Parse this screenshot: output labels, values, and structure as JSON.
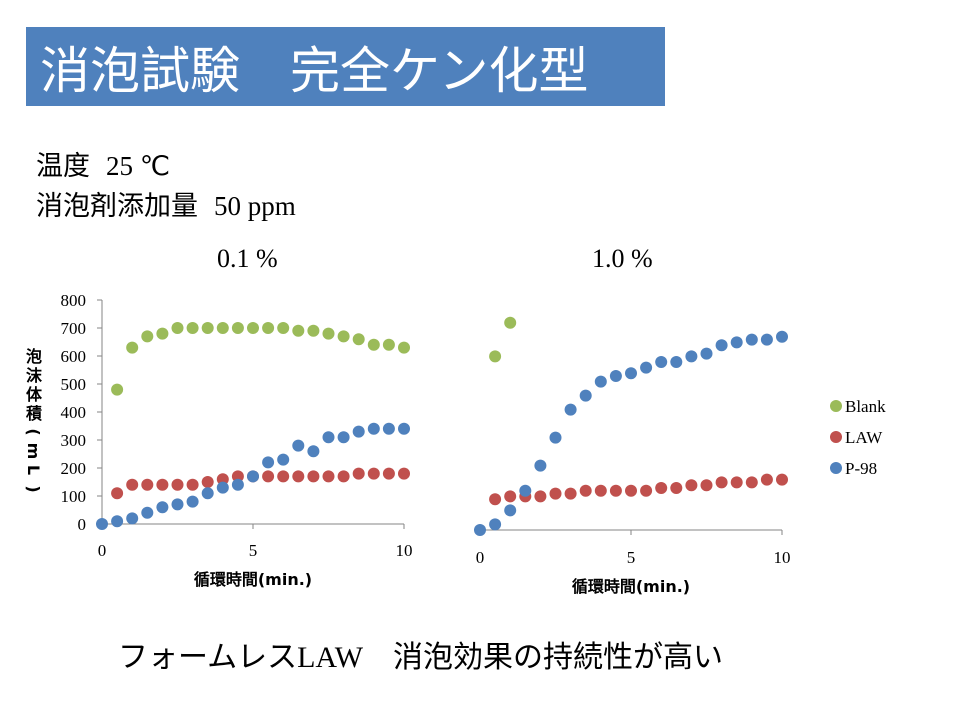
{
  "title": "消泡試験　完全ケン化型",
  "conditions": [
    {
      "label": "温度",
      "value": "25 ℃"
    },
    {
      "label": "消泡剤添加量",
      "value": "50 ppm"
    }
  ],
  "caption_a": "フォームレス",
  "caption_b": "LAW",
  "caption_c": "　消泡効果の持続性が高い",
  "colors": {
    "Blank": "#9bbb59",
    "LAW": "#c0504d",
    "P-98": "#4f81bd",
    "title_bg": "#4f81bd"
  },
  "chart_data": [
    {
      "type": "scatter",
      "title": "0.1 %",
      "xlabel": "循環時間(min.)",
      "ylabel": "泡沫体積(mL)",
      "xlim": [
        0,
        10
      ],
      "ylim": [
        0,
        800
      ],
      "xticks": [
        0,
        5,
        10
      ],
      "yticks": [
        0,
        100,
        200,
        300,
        400,
        500,
        600,
        700,
        800
      ],
      "series": [
        {
          "name": "Blank",
          "x": [
            0.5,
            1,
            1.5,
            2,
            2.5,
            3,
            3.5,
            4,
            4.5,
            5,
            5.5,
            6,
            6.5,
            7,
            7.5,
            8,
            8.5,
            9,
            9.5,
            10
          ],
          "y": [
            480,
            630,
            670,
            680,
            700,
            700,
            700,
            700,
            700,
            700,
            700,
            700,
            690,
            690,
            680,
            670,
            660,
            640,
            640,
            630
          ]
        },
        {
          "name": "LAW",
          "x": [
            0.5,
            1,
            1.5,
            2,
            2.5,
            3,
            3.5,
            4,
            4.5,
            5,
            5.5,
            6,
            6.5,
            7,
            7.5,
            8,
            8.5,
            9,
            9.5,
            10
          ],
          "y": [
            110,
            140,
            140,
            140,
            140,
            140,
            150,
            160,
            170,
            170,
            170,
            170,
            170,
            170,
            170,
            170,
            180,
            180,
            180,
            180
          ]
        },
        {
          "name": "P-98",
          "x": [
            0,
            0.5,
            1,
            1.5,
            2,
            2.5,
            3,
            3.5,
            4,
            4.5,
            5,
            5.5,
            6,
            6.5,
            7,
            7.5,
            8,
            8.5,
            9,
            9.5,
            10
          ],
          "y": [
            0,
            10,
            20,
            40,
            60,
            70,
            80,
            110,
            130,
            140,
            170,
            220,
            230,
            280,
            260,
            310,
            310,
            330,
            340,
            340,
            340
          ]
        }
      ]
    },
    {
      "type": "scatter",
      "title": "1.0 %",
      "xlabel": "循環時間(min.)",
      "xlim": [
        0,
        10
      ],
      "ylim": [
        0,
        800
      ],
      "xticks": [
        0,
        5,
        10
      ],
      "legend": "right",
      "series": [
        {
          "name": "Blank",
          "x": [
            0.5,
            1
          ],
          "y": [
            620,
            740
          ]
        },
        {
          "name": "LAW",
          "x": [
            0.5,
            1,
            1.5,
            2,
            2.5,
            3,
            3.5,
            4,
            4.5,
            5,
            5.5,
            6,
            6.5,
            7,
            7.5,
            8,
            8.5,
            9,
            9.5,
            10
          ],
          "y": [
            110,
            120,
            120,
            120,
            130,
            130,
            140,
            140,
            140,
            140,
            140,
            150,
            150,
            160,
            160,
            170,
            170,
            170,
            180,
            180
          ]
        },
        {
          "name": "P-98",
          "x": [
            0,
            0.5,
            1,
            1.5,
            2,
            2.5,
            3,
            3.5,
            4,
            4.5,
            5,
            5.5,
            6,
            6.5,
            7,
            7.5,
            8,
            8.5,
            9,
            9.5,
            10
          ],
          "y": [
            0,
            20,
            70,
            140,
            230,
            330,
            430,
            480,
            530,
            550,
            560,
            580,
            600,
            600,
            620,
            630,
            660,
            670,
            680,
            680,
            690
          ]
        }
      ]
    }
  ]
}
